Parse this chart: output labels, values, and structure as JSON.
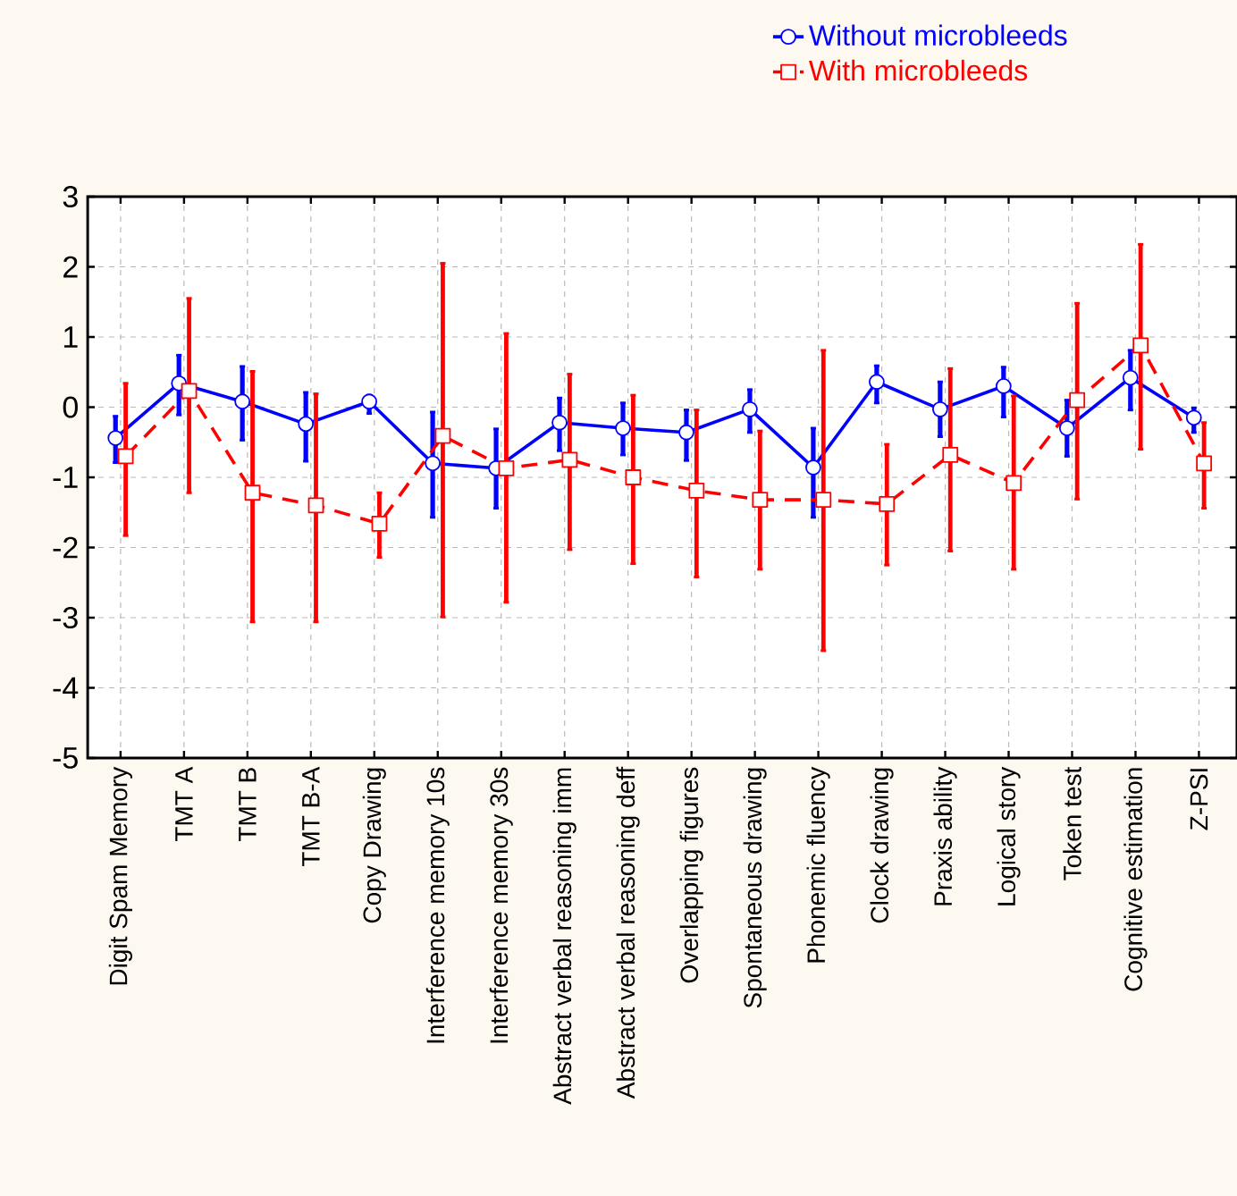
{
  "chart_data": {
    "type": "line",
    "categories": [
      "Digit Spam Memory",
      "TMT A",
      "TMT B",
      "TMT B-A",
      "Copy Drawing",
      "Interference memory 10s",
      "Interference memory 30s",
      "Abstract verbal reasoning imm",
      "Abstract verbal reasoning deff",
      "Overlapping figures",
      "Spontaneous drawing",
      "Phonemic fluency",
      "Clock drawing",
      "Praxis ability",
      "Logical story",
      "Token test",
      "Cognitive estimation",
      "Z-PSI"
    ],
    "series": [
      {
        "name": "Without microbleeds",
        "color": "#0000ff",
        "marker": "circle",
        "line_style": "solid",
        "values": [
          -0.44,
          0.34,
          0.08,
          -0.24,
          0.08,
          -0.8,
          -0.87,
          -0.22,
          -0.3,
          -0.36,
          -0.03,
          -0.86,
          0.36,
          -0.03,
          0.3,
          -0.3,
          0.42,
          -0.15
        ],
        "errors": [
          [
            -0.79,
            -0.13
          ],
          [
            -0.11,
            0.74
          ],
          [
            -0.47,
            0.58
          ],
          [
            -0.77,
            0.21
          ],
          [
            -0.09,
            0.17
          ],
          [
            -1.57,
            -0.07
          ],
          [
            -1.44,
            -0.31
          ],
          [
            -0.62,
            0.13
          ],
          [
            -0.68,
            0.06
          ],
          [
            -0.76,
            -0.04
          ],
          [
            -0.36,
            0.25
          ],
          [
            -1.57,
            -0.3
          ],
          [
            0.06,
            0.59
          ],
          [
            -0.42,
            0.36
          ],
          [
            -0.14,
            0.57
          ],
          [
            -0.7,
            0.1
          ],
          [
            -0.04,
            0.81
          ],
          [
            -0.36,
            -0.01
          ]
        ]
      },
      {
        "name": "With microbleeds",
        "color": "#ff0000",
        "marker": "square",
        "line_style": "dashed",
        "values": [
          -0.7,
          0.23,
          -1.22,
          -1.4,
          -1.66,
          -0.41,
          -0.87,
          -0.75,
          -1.0,
          -1.19,
          -1.32,
          -1.32,
          -1.38,
          -0.68,
          -1.08,
          0.1,
          0.88,
          -0.8
        ],
        "errors": [
          [
            -1.83,
            0.34
          ],
          [
            -1.22,
            1.55
          ],
          [
            -3.06,
            0.51
          ],
          [
            -3.06,
            0.19
          ],
          [
            -2.14,
            -1.22
          ],
          [
            -2.99,
            2.05
          ],
          [
            -2.78,
            1.05
          ],
          [
            -2.03,
            0.47
          ],
          [
            -2.23,
            0.17
          ],
          [
            -2.42,
            -0.04
          ],
          [
            -2.31,
            -0.34
          ],
          [
            -3.47,
            0.81
          ],
          [
            -2.25,
            -0.53
          ],
          [
            -2.05,
            0.55
          ],
          [
            -2.31,
            0.16
          ],
          [
            -1.31,
            1.48
          ],
          [
            -0.6,
            2.32
          ],
          [
            -1.44,
            -0.22
          ]
        ]
      }
    ],
    "ylim": [
      -5,
      3
    ],
    "yticks": [
      -5,
      -4,
      -3,
      -2,
      -1,
      0,
      1,
      2,
      3
    ],
    "grid": true,
    "legend": "top right"
  }
}
